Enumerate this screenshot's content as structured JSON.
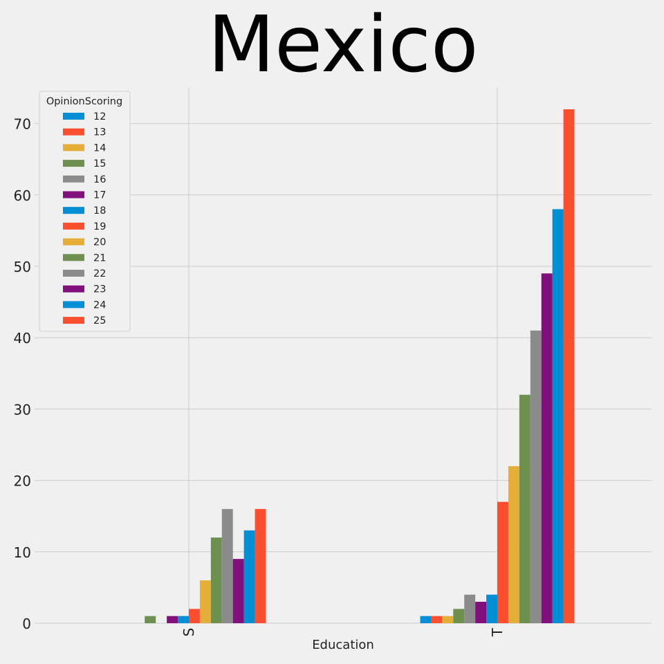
{
  "chart_data": {
    "type": "bar",
    "title": "Mexico",
    "xlabel": "Education",
    "ylabel": "",
    "categories": [
      "S",
      "T"
    ],
    "ylim": [
      0,
      75
    ],
    "yticks": [
      "0",
      "10",
      "20",
      "30",
      "40",
      "50",
      "60",
      "70"
    ],
    "grid": true,
    "legend": {
      "title": "OpinionScoring",
      "placement": "top-left"
    },
    "series": [
      {
        "name": "12",
        "color": "#008fd5",
        "values": [
          0,
          1
        ]
      },
      {
        "name": "13",
        "color": "#fc4f30",
        "values": [
          0,
          1
        ]
      },
      {
        "name": "14",
        "color": "#e5ae38",
        "values": [
          0,
          1
        ]
      },
      {
        "name": "15",
        "color": "#6d904f",
        "values": [
          1,
          2
        ]
      },
      {
        "name": "16",
        "color": "#8b8b8b",
        "values": [
          0,
          4
        ]
      },
      {
        "name": "17",
        "color": "#810f7c",
        "values": [
          1,
          3
        ]
      },
      {
        "name": "18",
        "color": "#008fd5",
        "values": [
          1,
          4
        ]
      },
      {
        "name": "19",
        "color": "#fc4f30",
        "values": [
          2,
          17
        ]
      },
      {
        "name": "20",
        "color": "#e5ae38",
        "values": [
          6,
          22
        ]
      },
      {
        "name": "21",
        "color": "#6d904f",
        "values": [
          12,
          32
        ]
      },
      {
        "name": "22",
        "color": "#8b8b8b",
        "values": [
          16,
          41
        ]
      },
      {
        "name": "23",
        "color": "#810f7c",
        "values": [
          9,
          49
        ]
      },
      {
        "name": "24",
        "color": "#008fd5",
        "values": [
          13,
          58
        ]
      },
      {
        "name": "25",
        "color": "#fc4f30",
        "values": [
          16,
          72
        ]
      }
    ]
  }
}
